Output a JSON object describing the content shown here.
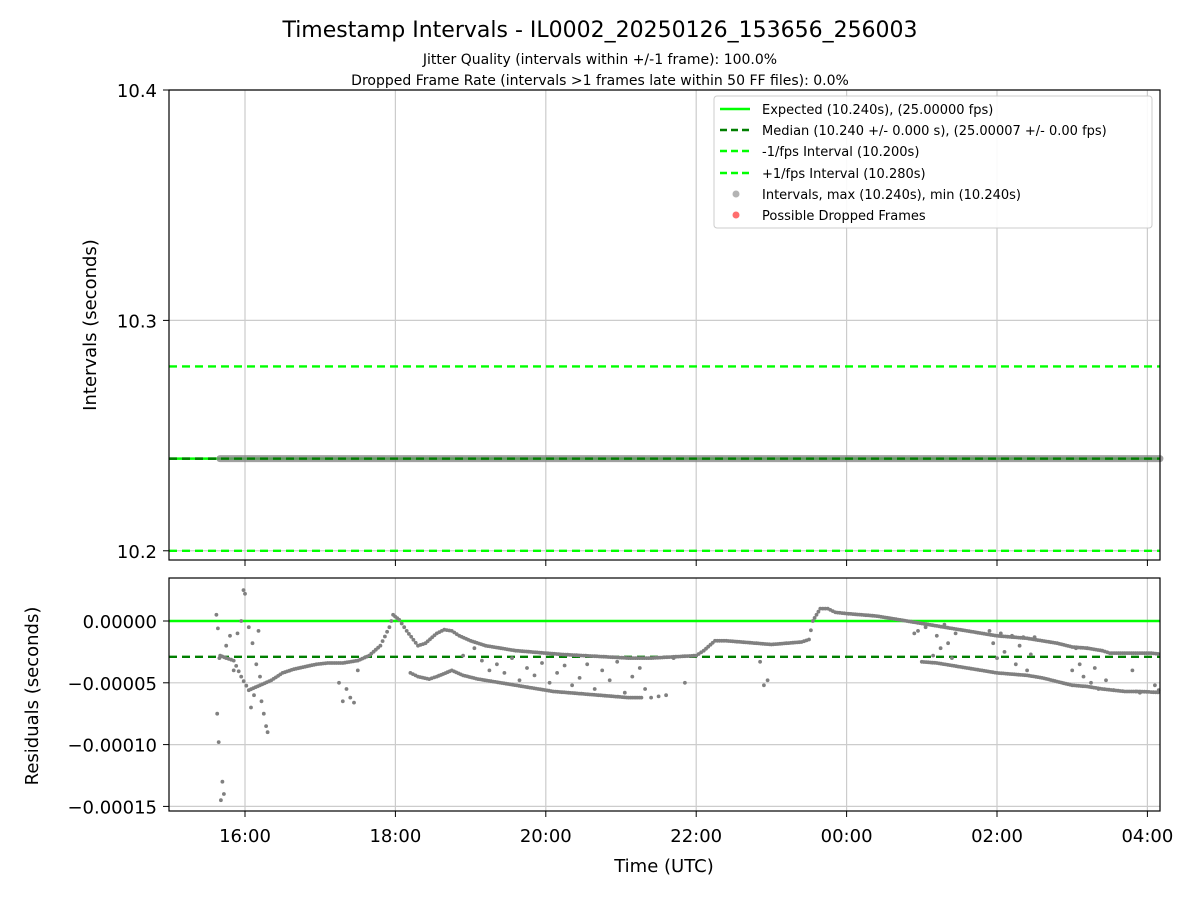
{
  "title": "Timestamp Intervals - IL0002_20250126_153656_256003",
  "subtitle_1": "Jitter Quality (intervals within +/-1 frame): 100.0%",
  "subtitle_2": "Dropped Frame Rate (intervals >1 frames late within 50 FF files): 0.0%",
  "colors": {
    "expected": "#00ff00",
    "median": "#007f00",
    "bounds": "#00ff00",
    "intervals": "#808080",
    "dropped": "#ff3030",
    "grid": "#cccccc"
  },
  "chart_data": [
    {
      "type": "line",
      "ylabel": "Intervals (seconds)",
      "ylim": [
        10.196,
        10.4
      ],
      "yticks": [
        "10.2",
        "10.3",
        "10.4"
      ],
      "xticks": [
        "16:00",
        "18:00",
        "20:00",
        "22:00",
        "00:00",
        "02:00",
        "04:00"
      ],
      "grid": true,
      "legend_position": "top-right",
      "legend": [
        "Expected (10.240s), (25.00000 fps)",
        "Median (10.240 +/- 0.000 s), (25.00007 +/- 0.00 fps)",
        "-1/fps Interval (10.200s)",
        "+1/fps Interval (10.280s)",
        "Intervals, max (10.240s), min (10.240s)",
        "Possible Dropped Frames"
      ],
      "reference_lines": [
        {
          "name": "Expected",
          "y": 10.24,
          "style": "solid"
        },
        {
          "name": "Median",
          "y": 10.24,
          "style": "dashed"
        },
        {
          "name": "-1/fps Interval",
          "y": 10.2,
          "style": "dashed"
        },
        {
          "name": "+1/fps Interval",
          "y": 10.28,
          "style": "dashed"
        }
      ],
      "intervals_range": {
        "x_start": "15:40",
        "x_end": "04:10",
        "y": 10.24
      }
    },
    {
      "type": "scatter",
      "xlabel": "Time (UTC)",
      "ylabel": "Residuals (seconds)",
      "ylim": [
        -0.000155,
        3.5e-05
      ],
      "yticks": [
        "0.00000",
        "−0.00005",
        "−0.00010",
        "−0.00015"
      ],
      "xticks": [
        "16:00",
        "18:00",
        "20:00",
        "22:00",
        "00:00",
        "02:00",
        "04:00"
      ],
      "xlim_hours": [
        15.0,
        28.2
      ],
      "reference_lines": [
        {
          "name": "Expected",
          "y": 0.0,
          "style": "solid"
        },
        {
          "name": "Median",
          "y": -2.9e-05,
          "style": "dashed"
        }
      ],
      "series": [
        {
          "type": "trend",
          "points": [
            [
              15.67,
              -2.8e-05
            ],
            [
              15.75,
              -3e-05
            ],
            [
              15.85,
              -3.2e-05
            ],
            [
              15.95,
              -4.5e-05
            ],
            [
              16.05,
              -5.6e-05
            ],
            [
              16.2,
              -5.2e-05
            ],
            [
              16.35,
              -4.8e-05
            ],
            [
              16.5,
              -4.2e-05
            ],
            [
              16.65,
              -3.9e-05
            ],
            [
              16.8,
              -3.7e-05
            ],
            [
              16.95,
              -3.5e-05
            ],
            [
              17.1,
              -3.4e-05
            ],
            [
              17.3,
              -3.4e-05
            ],
            [
              17.5,
              -3.2e-05
            ],
            [
              17.65,
              -2.8e-05
            ],
            [
              17.8,
              -2e-05
            ],
            [
              17.92,
              -5e-06
            ],
            [
              17.97,
              5e-06
            ],
            [
              18.05,
              1e-06
            ],
            [
              18.15,
              -8e-06
            ],
            [
              18.3,
              -2e-05
            ],
            [
              18.4,
              -1.8e-05
            ],
            [
              18.55,
              -1e-05
            ],
            [
              18.65,
              -7e-06
            ],
            [
              18.75,
              -8e-06
            ],
            [
              18.85,
              -1.2e-05
            ],
            [
              19.0,
              -1.6e-05
            ],
            [
              19.2,
              -2e-05
            ],
            [
              19.4,
              -2.2e-05
            ],
            [
              19.6,
              -2.4e-05
            ],
            [
              19.8,
              -2.5e-05
            ],
            [
              20.0,
              -2.6e-05
            ],
            [
              20.2,
              -2.7e-05
            ],
            [
              20.5,
              -2.8e-05
            ],
            [
              20.8,
              -2.9e-05
            ],
            [
              21.1,
              -3e-05
            ],
            [
              21.4,
              -3e-05
            ],
            [
              21.7,
              -2.9e-05
            ],
            [
              22.0,
              -2.8e-05
            ],
            [
              22.1,
              -2.4e-05
            ],
            [
              22.25,
              -1.6e-05
            ],
            [
              22.4,
              -1.6e-05
            ],
            [
              22.6,
              -1.7e-05
            ],
            [
              22.8,
              -1.8e-05
            ],
            [
              23.0,
              -1.9e-05
            ],
            [
              23.2,
              -1.8e-05
            ],
            [
              23.4,
              -1.7e-05
            ],
            [
              23.5,
              -1.5e-05
            ],
            [
              23.55,
              0.0
            ],
            [
              23.6,
              5e-06
            ],
            [
              23.65,
              1e-05
            ],
            [
              23.75,
              1e-05
            ],
            [
              23.85,
              7e-06
            ],
            [
              24.0,
              6e-06
            ],
            [
              24.2,
              5e-06
            ],
            [
              24.4,
              4e-06
            ],
            [
              24.6,
              2e-06
            ],
            [
              24.8,
              0.0
            ],
            [
              25.0,
              -2e-06
            ],
            [
              25.2,
              -4e-06
            ],
            [
              25.4,
              -6e-06
            ],
            [
              25.6,
              -8e-06
            ],
            [
              25.8,
              -1e-05
            ],
            [
              26.0,
              -1.2e-05
            ],
            [
              26.2,
              -1.3e-05
            ],
            [
              26.4,
              -1.4e-05
            ],
            [
              26.6,
              -1.6e-05
            ],
            [
              26.8,
              -1.8e-05
            ],
            [
              27.0,
              -2.1e-05
            ],
            [
              27.2,
              -2.2e-05
            ],
            [
              27.4,
              -2.4e-05
            ],
            [
              27.5,
              -2.6e-05
            ],
            [
              27.7,
              -2.6e-05
            ],
            [
              27.9,
              -2.6e-05
            ],
            [
              28.05,
              -2.6e-05
            ],
            [
              28.2,
              -2.7e-05
            ]
          ]
        },
        {
          "type": "trend",
          "points": [
            [
              18.2,
              -4.2e-05
            ],
            [
              18.3,
              -4.5e-05
            ],
            [
              18.45,
              -4.7e-05
            ],
            [
              18.55,
              -4.5e-05
            ],
            [
              18.75,
              -4e-05
            ],
            [
              18.9,
              -4.4e-05
            ],
            [
              19.1,
              -4.7e-05
            ],
            [
              19.3,
              -4.9e-05
            ],
            [
              19.5,
              -5.1e-05
            ],
            [
              19.7,
              -5.3e-05
            ],
            [
              19.9,
              -5.5e-05
            ],
            [
              20.1,
              -5.7e-05
            ],
            [
              20.3,
              -5.8e-05
            ],
            [
              20.5,
              -5.9e-05
            ],
            [
              20.7,
              -6e-05
            ],
            [
              20.9,
              -6.1e-05
            ],
            [
              21.1,
              -6.2e-05
            ],
            [
              21.3,
              -6.2e-05
            ],
            [
              25.0,
              -3.3e-05
            ],
            [
              25.2,
              -3.4e-05
            ],
            [
              25.4,
              -3.6e-05
            ],
            [
              25.6,
              -3.8e-05
            ],
            [
              25.8,
              -4e-05
            ],
            [
              26.0,
              -4.2e-05
            ],
            [
              26.2,
              -4.3e-05
            ],
            [
              26.4,
              -4.4e-05
            ],
            [
              26.6,
              -4.6e-05
            ],
            [
              26.8,
              -4.9e-05
            ],
            [
              27.0,
              -5.2e-05
            ],
            [
              27.2,
              -5.3e-05
            ],
            [
              27.4,
              -5.5e-05
            ],
            [
              27.55,
              -5.6e-05
            ],
            [
              27.7,
              -5.7e-05
            ],
            [
              27.9,
              -5.7e-05
            ],
            [
              28.2,
              -5.8e-05
            ]
          ]
        },
        {
          "type": "points",
          "points": [
            [
              15.62,
              5e-06
            ],
            [
              15.64,
              -6e-06
            ],
            [
              15.66,
              -3e-05
            ],
            [
              15.63,
              -7.5e-05
            ],
            [
              15.65,
              -9.8e-05
            ],
            [
              15.7,
              -0.00013
            ],
            [
              15.72,
              -0.00014
            ],
            [
              15.68,
              -0.000145
            ],
            [
              15.75,
              -2e-05
            ],
            [
              15.8,
              -1.2e-05
            ],
            [
              15.85,
              -4e-05
            ],
            [
              15.9,
              -1e-05
            ],
            [
              15.95,
              0.0
            ],
            [
              15.98,
              2.5e-05
            ],
            [
              16.0,
              2.2e-05
            ],
            [
              16.05,
              -5e-06
            ],
            [
              16.1,
              -1.8e-05
            ],
            [
              16.15,
              -3.5e-05
            ],
            [
              16.2,
              -4.5e-05
            ],
            [
              16.22,
              -6.5e-05
            ],
            [
              16.25,
              -7.5e-05
            ],
            [
              16.28,
              -8.5e-05
            ],
            [
              16.3,
              -9e-05
            ],
            [
              16.18,
              -8e-06
            ],
            [
              16.12,
              -6e-05
            ],
            [
              16.08,
              -7e-05
            ],
            [
              17.25,
              -5e-05
            ],
            [
              17.35,
              -5.5e-05
            ],
            [
              17.4,
              -6.2e-05
            ],
            [
              17.3,
              -6.5e-05
            ],
            [
              17.45,
              -6.6e-05
            ],
            [
              17.5,
              -4e-05
            ],
            [
              18.9,
              -2.8e-05
            ],
            [
              19.05,
              -2.2e-05
            ],
            [
              19.15,
              -3.2e-05
            ],
            [
              19.25,
              -4e-05
            ],
            [
              19.35,
              -3.5e-05
            ],
            [
              19.45,
              -4.2e-05
            ],
            [
              19.55,
              -3e-05
            ],
            [
              19.65,
              -4.8e-05
            ],
            [
              19.75,
              -3.8e-05
            ],
            [
              19.85,
              -4.4e-05
            ],
            [
              19.95,
              -3.4e-05
            ],
            [
              20.05,
              -5e-05
            ],
            [
              20.15,
              -4.2e-05
            ],
            [
              20.25,
              -3.6e-05
            ],
            [
              20.35,
              -5.2e-05
            ],
            [
              20.45,
              -4.6e-05
            ],
            [
              20.55,
              -3.5e-05
            ],
            [
              20.65,
              -5.5e-05
            ],
            [
              20.75,
              -4e-05
            ],
            [
              20.85,
              -4.8e-05
            ],
            [
              20.95,
              -3.3e-05
            ],
            [
              21.05,
              -5.8e-05
            ],
            [
              21.15,
              -4.5e-05
            ],
            [
              21.25,
              -3.8e-05
            ],
            [
              21.32,
              -5.5e-05
            ],
            [
              21.4,
              -6.2e-05
            ],
            [
              21.5,
              -6.1e-05
            ],
            [
              21.6,
              -6e-05
            ],
            [
              21.7,
              -3e-05
            ],
            [
              21.85,
              -5e-05
            ],
            [
              22.85,
              -3.3e-05
            ],
            [
              22.9,
              -5.2e-05
            ],
            [
              22.95,
              -4.8e-05
            ],
            [
              24.9,
              -1e-05
            ],
            [
              24.95,
              -8e-06
            ],
            [
              25.05,
              -5e-06
            ],
            [
              25.15,
              -2.8e-05
            ],
            [
              25.2,
              -1.2e-05
            ],
            [
              25.25,
              -2.2e-05
            ],
            [
              25.3,
              -3e-06
            ],
            [
              25.35,
              -1.8e-05
            ],
            [
              25.4,
              -3e-05
            ],
            [
              25.45,
              -1e-05
            ],
            [
              25.9,
              -8e-06
            ],
            [
              25.95,
              -1.8e-05
            ],
            [
              26.0,
              -3e-05
            ],
            [
              26.05,
              -1e-05
            ],
            [
              26.1,
              -2.5e-05
            ],
            [
              26.2,
              -1.2e-05
            ],
            [
              26.25,
              -3.5e-05
            ],
            [
              26.3,
              -2e-05
            ],
            [
              26.35,
              -1.3e-05
            ],
            [
              26.4,
              -4e-05
            ],
            [
              26.45,
              -2.7e-05
            ],
            [
              26.5,
              -1.3e-05
            ],
            [
              27.0,
              -4e-05
            ],
            [
              27.05,
              -2.2e-05
            ],
            [
              27.1,
              -3.5e-05
            ],
            [
              27.15,
              -4.5e-05
            ],
            [
              27.2,
              -2.2e-05
            ],
            [
              27.25,
              -5e-05
            ],
            [
              27.3,
              -3.8e-05
            ],
            [
              27.35,
              -5.5e-05
            ],
            [
              27.45,
              -4.8e-05
            ],
            [
              27.55,
              -5.6e-05
            ],
            [
              27.8,
              -4e-05
            ],
            [
              27.85,
              -5.7e-05
            ],
            [
              27.9,
              -5.8e-05
            ],
            [
              28.1,
              -5.2e-05
            ],
            [
              28.15,
              -5.6e-05
            ]
          ]
        }
      ]
    }
  ]
}
